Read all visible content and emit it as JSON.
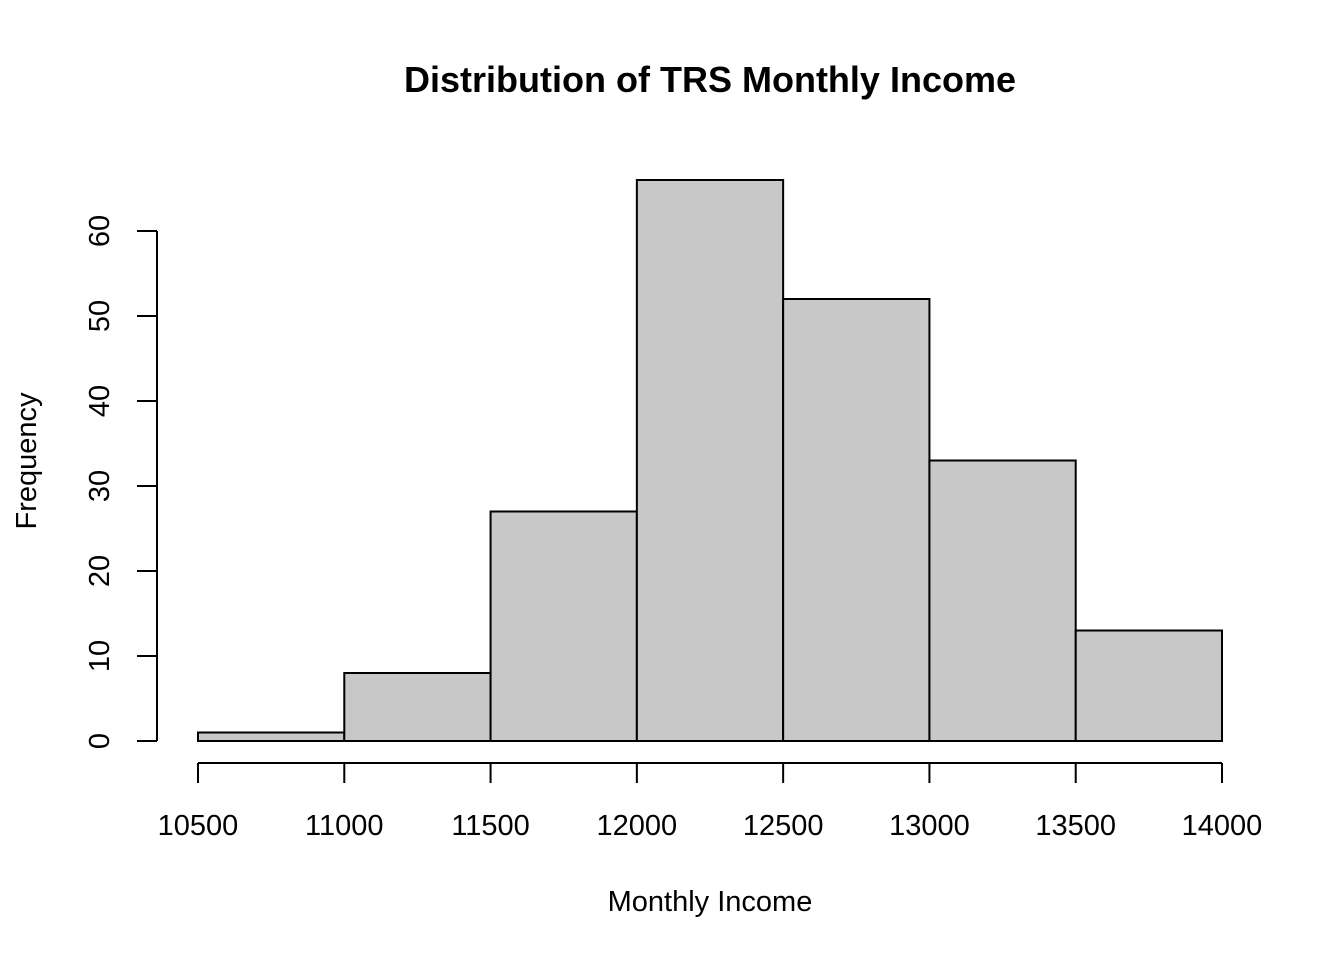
{
  "chart_data": {
    "type": "bar",
    "title": "Distribution of TRS Monthly Income",
    "xlabel": "Monthly Income",
    "ylabel": "Frequency",
    "bin_edges": [
      10500,
      11000,
      11500,
      12000,
      12500,
      13000,
      13500,
      14000
    ],
    "values": [
      1,
      8,
      27,
      66,
      52,
      33,
      13
    ],
    "xlim": [
      10500,
      14000
    ],
    "ylim": [
      0,
      60
    ],
    "x_ticks": [
      10500,
      11000,
      11500,
      12000,
      12500,
      13000,
      13500,
      14000
    ],
    "x_tick_labels": [
      "10500",
      "11000",
      "11500",
      "12000",
      "12500",
      "13000",
      "13500",
      "14000"
    ],
    "y_ticks": [
      0,
      10,
      20,
      30,
      40,
      50,
      60
    ],
    "y_tick_labels": [
      "0",
      "10",
      "20",
      "30",
      "40",
      "50",
      "60"
    ],
    "bar_fill": "#c8c8c8",
    "bar_stroke": "#000000",
    "grid": false,
    "legend": "none"
  }
}
